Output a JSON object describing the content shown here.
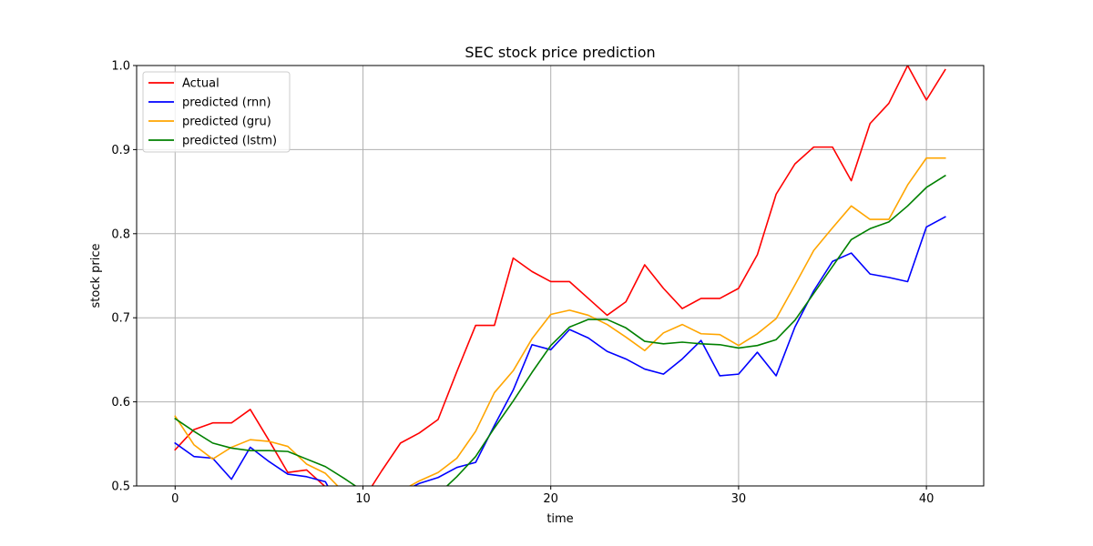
{
  "chart_data": {
    "type": "line",
    "title": "SEC stock price prediction",
    "xlabel": "time",
    "ylabel": "stock price",
    "xlim": [
      -2.05,
      43.05
    ],
    "ylim": [
      0.5,
      1.0
    ],
    "xticks": [
      0,
      10,
      20,
      30,
      40
    ],
    "yticks": [
      0.5,
      0.6,
      0.7,
      0.8,
      0.9,
      1.0
    ],
    "ytick_labels": [
      "0.5",
      "0.6",
      "0.7",
      "0.8",
      "0.9",
      "1.0"
    ],
    "grid": true,
    "legend_position": "upper-left",
    "x": [
      0,
      1,
      2,
      3,
      4,
      5,
      6,
      7,
      8,
      9,
      10,
      11,
      12,
      13,
      14,
      15,
      16,
      17,
      18,
      19,
      20,
      21,
      22,
      23,
      24,
      25,
      26,
      27,
      28,
      29,
      30,
      31,
      32,
      33,
      34,
      35,
      36,
      37,
      38,
      39,
      40,
      41
    ],
    "series": [
      {
        "name": "Actual",
        "color": "#ff0000",
        "values": [
          0.543,
          0.567,
          0.575,
          0.575,
          0.591,
          0.554,
          0.516,
          0.519,
          0.499,
          0.465,
          0.483,
          0.518,
          0.551,
          0.563,
          0.579,
          0.636,
          0.691,
          0.691,
          0.771,
          0.755,
          0.743,
          0.743,
          0.723,
          0.703,
          0.719,
          0.763,
          0.735,
          0.711,
          0.723,
          0.723,
          0.735,
          0.775,
          0.847,
          0.883,
          0.903,
          0.903,
          0.863,
          0.931,
          0.955,
          1.0,
          0.959,
          0.995
        ]
      },
      {
        "name": "predicted (rnn)",
        "color": "#0000ff",
        "values": [
          0.551,
          0.535,
          0.533,
          0.508,
          0.546,
          0.529,
          0.514,
          0.511,
          0.505,
          0.465,
          0.47,
          0.48,
          0.492,
          0.503,
          0.51,
          0.522,
          0.528,
          0.572,
          0.614,
          0.668,
          0.662,
          0.686,
          0.676,
          0.66,
          0.651,
          0.639,
          0.633,
          0.651,
          0.673,
          0.631,
          0.633,
          0.659,
          0.631,
          0.689,
          0.732,
          0.767,
          0.777,
          0.752,
          0.748,
          0.743,
          0.808,
          0.82
        ]
      },
      {
        "name": "predicted (gru)",
        "color": "#ffa500",
        "values": [
          0.583,
          0.549,
          0.532,
          0.546,
          0.555,
          0.553,
          0.547,
          0.526,
          0.515,
          0.492,
          0.478,
          0.483,
          0.494,
          0.506,
          0.516,
          0.533,
          0.565,
          0.611,
          0.637,
          0.675,
          0.704,
          0.709,
          0.703,
          0.692,
          0.677,
          0.661,
          0.682,
          0.692,
          0.681,
          0.68,
          0.667,
          0.681,
          0.699,
          0.739,
          0.78,
          0.807,
          0.833,
          0.817,
          0.817,
          0.858,
          0.89,
          0.89
        ]
      },
      {
        "name": "predicted (lstm)",
        "color": "#008000",
        "values": [
          0.58,
          0.565,
          0.551,
          0.545,
          0.542,
          0.542,
          0.541,
          0.532,
          0.523,
          0.509,
          0.494,
          0.484,
          0.481,
          0.483,
          0.49,
          0.511,
          0.535,
          0.569,
          0.601,
          0.635,
          0.667,
          0.689,
          0.698,
          0.698,
          0.688,
          0.672,
          0.669,
          0.671,
          0.669,
          0.668,
          0.664,
          0.667,
          0.674,
          0.697,
          0.729,
          0.761,
          0.793,
          0.806,
          0.814,
          0.833,
          0.855,
          0.869
        ]
      }
    ]
  }
}
